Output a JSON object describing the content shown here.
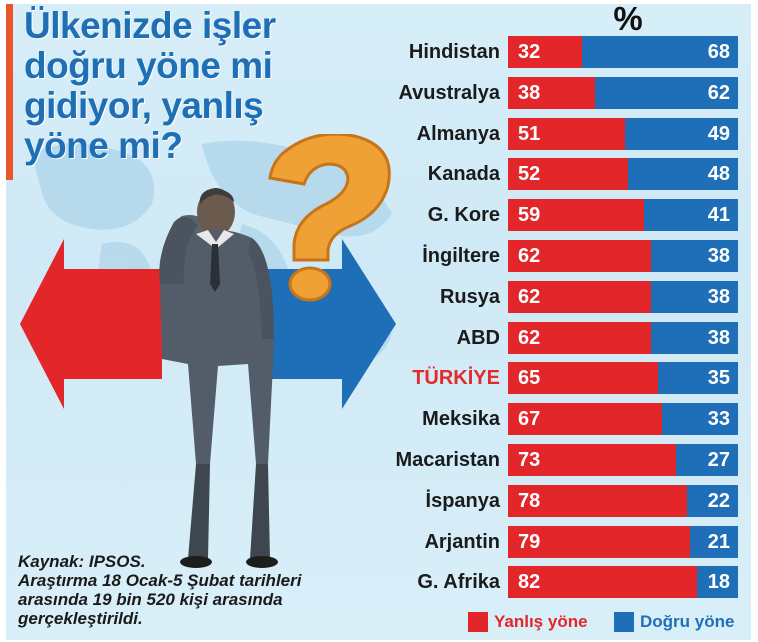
{
  "title_lines": [
    "Ülkenizde işler",
    "doğru yöne mi",
    "gidiyor, yanlış",
    "yöne mi?"
  ],
  "percent_symbol": "%",
  "source": {
    "line1": "Kaynak: IPSOS.",
    "line2": "Araştırma 18 Ocak-5 Şubat tarihleri",
    "line3": "arasında 19 bin 520 kişi arasında",
    "line4": "gerçekleştirildi."
  },
  "legend": {
    "wrong_label": "Yanlış yöne",
    "right_label": "Doğru yöne"
  },
  "colors": {
    "wrong": "#e2262a",
    "right": "#1f6fb8",
    "title": "#1f6fb5",
    "highlight_label": "#e32b2b"
  },
  "icons": [
    "question-mark-icon",
    "left-arrow-icon",
    "right-arrow-icon",
    "thinking-man-illustration",
    "world-map-illustration"
  ],
  "chart_data": {
    "type": "bar",
    "orientation": "horizontal",
    "stacked": true,
    "percent_stacked": true,
    "categories": [
      "Hindistan",
      "Avustralya",
      "Almanya",
      "Kanada",
      "G. Kore",
      "İngiltere",
      "Rusya",
      "ABD",
      "TÜRKİYE",
      "Meksika",
      "Macaristan",
      "İspanya",
      "Arjantin",
      "G. Afrika"
    ],
    "highlighted_category": "TÜRKİYE",
    "series": [
      {
        "name": "Yanlış yöne",
        "values": [
          32,
          38,
          51,
          52,
          59,
          62,
          62,
          62,
          65,
          67,
          73,
          78,
          79,
          82
        ]
      },
      {
        "name": "Doğru yöne",
        "values": [
          68,
          62,
          49,
          48,
          41,
          38,
          38,
          38,
          35,
          33,
          27,
          22,
          21,
          18
        ]
      }
    ],
    "ylabel": "%",
    "xlim": [
      0,
      100
    ],
    "legend_position": "bottom-right",
    "grid": false
  }
}
